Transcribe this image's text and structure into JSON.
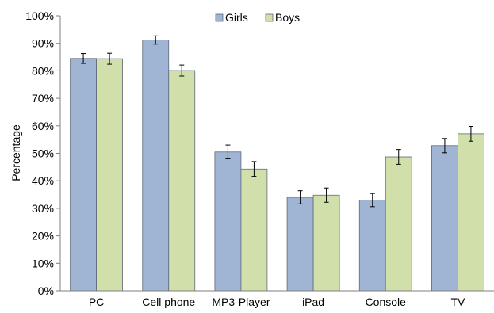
{
  "chart_data": {
    "type": "bar",
    "categories": [
      "PC",
      "Cell phone",
      "MP3-Player",
      "iPad",
      "Console",
      "TV"
    ],
    "series": [
      {
        "name": "Girls",
        "color": "#a0b4d4",
        "values": [
          84.5,
          91.2,
          50.5,
          34.0,
          33.0,
          52.8
        ],
        "errors": [
          1.8,
          1.5,
          2.5,
          2.4,
          2.4,
          2.6
        ]
      },
      {
        "name": "Boys",
        "color": "#d1dfab",
        "values": [
          84.4,
          80.1,
          44.3,
          34.8,
          48.7,
          57.1
        ],
        "errors": [
          2.0,
          2.0,
          2.7,
          2.6,
          2.7,
          2.7
        ]
      }
    ],
    "ylabel": "Percentage",
    "xlabel": "",
    "ylim": [
      0,
      100
    ],
    "yticks": [
      0,
      10,
      20,
      30,
      40,
      50,
      60,
      70,
      80,
      90,
      100
    ],
    "ytick_format": "%",
    "legend_position": "top",
    "grid": false
  }
}
